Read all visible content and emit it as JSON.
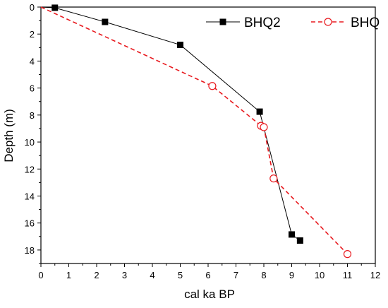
{
  "chart_data": {
    "type": "line",
    "xlabel": "cal ka BP",
    "ylabel": "Depth (m)",
    "xlim": [
      0,
      12
    ],
    "ylim": [
      0,
      19
    ],
    "y_inverted": true,
    "x_ticks": [
      "0",
      "1",
      "2",
      "3",
      "4",
      "5",
      "6",
      "7",
      "8",
      "9",
      "10",
      "11",
      "12"
    ],
    "y_ticks": [
      "0",
      "2",
      "4",
      "6",
      "8",
      "10",
      "12",
      "14",
      "16",
      "18"
    ],
    "grid": false,
    "legend_position": "top-right",
    "series": [
      {
        "name": "BHQ2",
        "color": "#000000",
        "line_style": "solid",
        "marker": "filled-square",
        "points": [
          {
            "x": 0.0,
            "y": 0.0
          },
          {
            "x": 0.5,
            "y": 0.05
          },
          {
            "x": 2.3,
            "y": 1.1
          },
          {
            "x": 5.0,
            "y": 2.8
          },
          {
            "x": 7.85,
            "y": 7.75
          },
          {
            "x": 9.0,
            "y": 16.85
          },
          {
            "x": 9.3,
            "y": 17.3
          }
        ],
        "marker_points": [
          0.5,
          2.3,
          5.0,
          7.85,
          9.0,
          9.3
        ]
      },
      {
        "name": "BHQ",
        "color": "#e8191e",
        "line_style": "dashed",
        "marker": "open-circle",
        "points": [
          {
            "x": 0.0,
            "y": 0.0
          },
          {
            "x": 6.15,
            "y": 5.85
          },
          {
            "x": 7.9,
            "y": 8.8
          },
          {
            "x": 8.0,
            "y": 8.9
          },
          {
            "x": 8.35,
            "y": 12.7
          },
          {
            "x": 11.0,
            "y": 18.3
          }
        ],
        "marker_points": [
          6.15,
          7.9,
          8.0,
          8.35,
          11.0
        ]
      }
    ]
  }
}
